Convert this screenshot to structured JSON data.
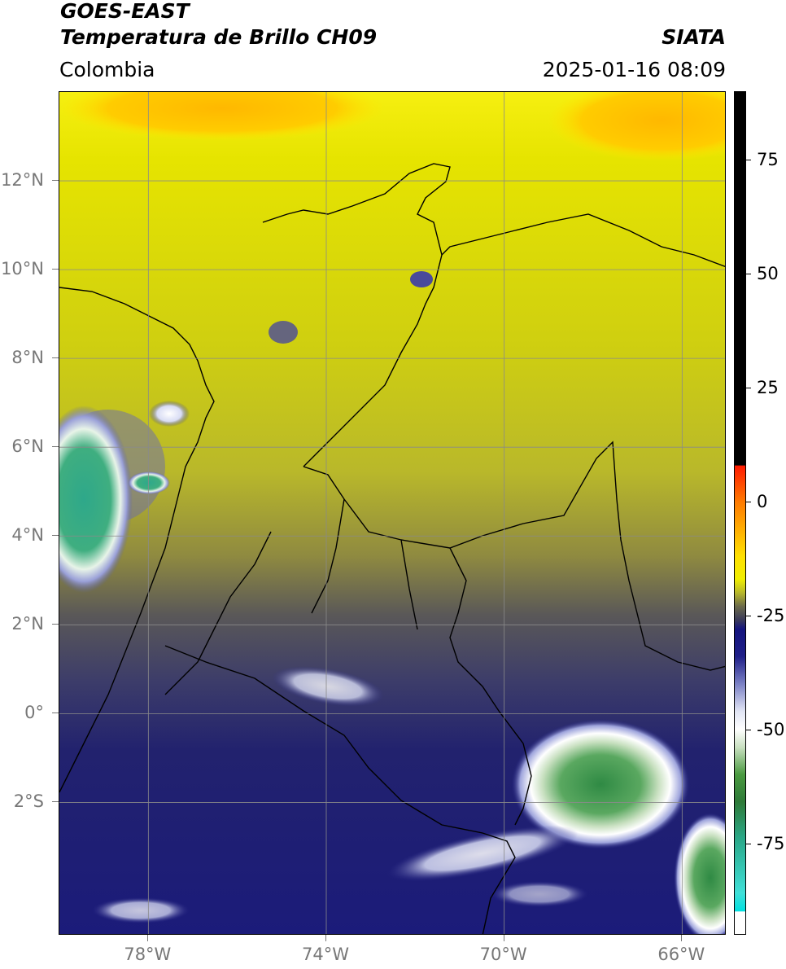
{
  "header": {
    "title": "GOES-EAST",
    "subtitle": "Temperatura de Brillo CH09",
    "organization": "SIATA",
    "region": "Colombia",
    "datetime": "2025-01-16 08:09"
  },
  "map": {
    "lon_range": [
      -80,
      -65
    ],
    "lat_range": [
      -5,
      14
    ],
    "lat_ticks": [
      {
        "value": 12,
        "label": "12°N"
      },
      {
        "value": 10,
        "label": "10°N"
      },
      {
        "value": 8,
        "label": "8°N"
      },
      {
        "value": 6,
        "label": "6°N"
      },
      {
        "value": 4,
        "label": "4°N"
      },
      {
        "value": 2,
        "label": "2°N"
      },
      {
        "value": 0,
        "label": "0°"
      },
      {
        "value": -2,
        "label": "2°S"
      }
    ],
    "lon_ticks": [
      {
        "value": -78,
        "label": "78°W"
      },
      {
        "value": -74,
        "label": "74°W"
      },
      {
        "value": -70,
        "label": "70°W"
      },
      {
        "value": -66,
        "label": "66°W"
      }
    ],
    "gridlines": true,
    "colors": {
      "warm": "#ffd200",
      "yellow": "#e0e000",
      "olive": "#b8b82a",
      "olive_dark": "#7e7a45",
      "gray": "#4a4a5e",
      "navy": "#1a1a80",
      "light_blue": "#aab0dd",
      "white": "#ffffff",
      "green": "#3c9a50",
      "teal": "#3cc0a0"
    }
  },
  "colorbar": {
    "range": [
      -95,
      90
    ],
    "ticks": [
      {
        "value": 75,
        "label": "75"
      },
      {
        "value": 50,
        "label": "50"
      },
      {
        "value": 25,
        "label": "25"
      },
      {
        "value": 0,
        "label": "0"
      },
      {
        "value": -25,
        "label": "-25"
      },
      {
        "value": -50,
        "label": "-50"
      },
      {
        "value": -75,
        "label": "-75"
      }
    ]
  }
}
